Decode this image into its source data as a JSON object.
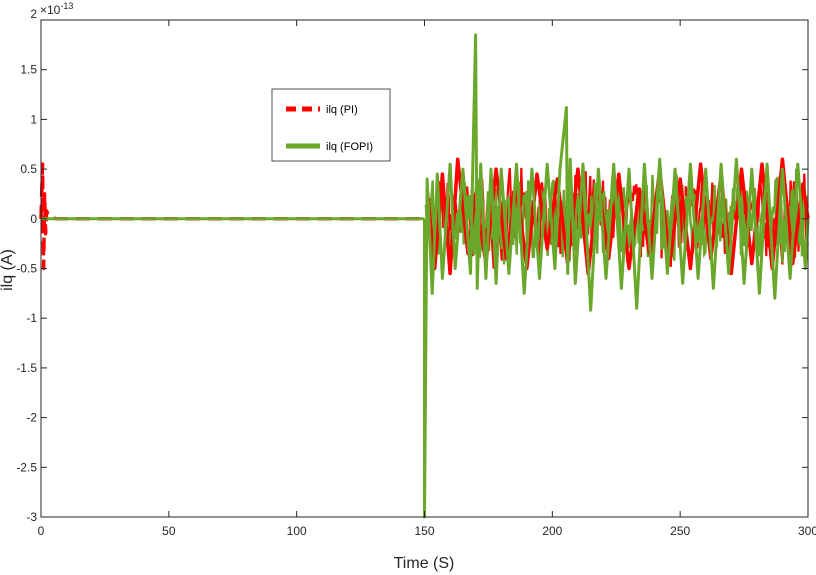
{
  "chart_data": {
    "type": "line",
    "title": "",
    "xlabel": "Time (S)",
    "ylabel": "ilq (A)",
    "y_multiplier": "×10",
    "y_exponent": "-13",
    "xlim": [
      0,
      300
    ],
    "ylim": [
      -3,
      2
    ],
    "x_ticks": [
      0,
      50,
      100,
      150,
      200,
      250,
      300
    ],
    "y_ticks": [
      -3,
      -2.5,
      -2,
      -1.5,
      -1,
      -0.5,
      0,
      0.5,
      1,
      1.5,
      2
    ],
    "y_tick_labels": [
      "-3",
      "-2.5",
      "-2",
      "-1.5",
      "-1",
      "-0.5",
      "0",
      "0.5",
      "1",
      "1.5",
      "2"
    ],
    "grid": false,
    "legend_position": "upper-left-center",
    "series": [
      {
        "name": "ilq (PI)",
        "color": "#ff0000",
        "style": "dashed",
        "segments": [
          {
            "x": [
              0,
              0.6,
              1.0,
              1.4,
              1.8,
              2.2,
              3.0,
              6.0,
              150.0
            ],
            "y": [
              0,
              0.55,
              -0.5,
              0.25,
              -0.15,
              0.08,
              0.02,
              0,
              0
            ]
          },
          {
            "x": [
              151,
              154,
              157,
              160,
              163,
              167,
              170,
              174,
              178,
              182,
              186,
              190,
              194,
              198,
              202,
              206,
              210,
              214,
              218,
              222,
              226,
              230,
              234,
              238,
              242,
              246,
              250,
              254,
              258,
              262,
              266,
              270,
              274,
              278,
              282,
              286,
              290,
              294,
              298,
              300
            ],
            "y": [
              0.3,
              -0.5,
              0.45,
              -0.55,
              0.6,
              -0.35,
              0.25,
              -0.45,
              0.5,
              -0.4,
              0.35,
              -0.5,
              0.45,
              -0.3,
              0.4,
              -0.45,
              0.5,
              -0.55,
              0.35,
              -0.4,
              0.45,
              -0.5,
              0.3,
              -0.35,
              0.5,
              -0.45,
              0.4,
              -0.5,
              0.55,
              -0.4,
              0.45,
              -0.55,
              0.5,
              -0.45,
              0.55,
              -0.5,
              0.6,
              -0.45,
              0.35,
              0
            ]
          }
        ]
      },
      {
        "name": "ilq (FOPI)",
        "color": "#6aa82c",
        "style": "solid",
        "segments": [
          {
            "x": [
              0,
              150.0
            ],
            "y": [
              0,
              0
            ]
          },
          {
            "x": [
              150.0,
              150.0,
              151.0,
              153,
              155,
              157,
              160,
              162,
              165,
              168,
              170.0,
              170.6,
              172,
              174,
              176,
              178,
              180,
              183,
              186,
              189,
              192,
              195,
              198,
              201,
              203,
              205.5,
              206.0,
              207,
              209,
              212,
              215,
              218,
              221,
              224,
              227,
              230,
              233,
              236,
              239,
              242,
              245,
              248,
              251,
              254,
              257,
              260,
              263,
              266,
              269,
              272,
              275,
              278,
              281,
              284,
              287,
              290,
              293,
              296,
              299,
              300
            ],
            "y": [
              0,
              -3.0,
              0.4,
              -0.75,
              0.45,
              -0.6,
              0.55,
              -0.5,
              0.5,
              -0.55,
              1.85,
              -0.7,
              0.55,
              -0.6,
              0.5,
              -0.65,
              0.5,
              -0.55,
              0.55,
              -0.75,
              0.5,
              -0.6,
              0.55,
              -0.5,
              0.5,
              1.12,
              -0.55,
              0.6,
              -0.65,
              0.55,
              -0.92,
              0.5,
              -0.6,
              0.55,
              -0.7,
              0.5,
              -0.9,
              0.55,
              -0.6,
              0.6,
              -0.55,
              0.5,
              -0.65,
              0.55,
              -0.6,
              0.5,
              -0.7,
              0.55,
              -0.55,
              0.6,
              -0.65,
              0.5,
              -0.75,
              0.55,
              -0.8,
              0.5,
              -0.6,
              0.55,
              -0.5,
              0
            ]
          }
        ]
      }
    ],
    "noise_band": {
      "x_start": 150,
      "x_end": 300,
      "amplitude": 0.42
    }
  }
}
